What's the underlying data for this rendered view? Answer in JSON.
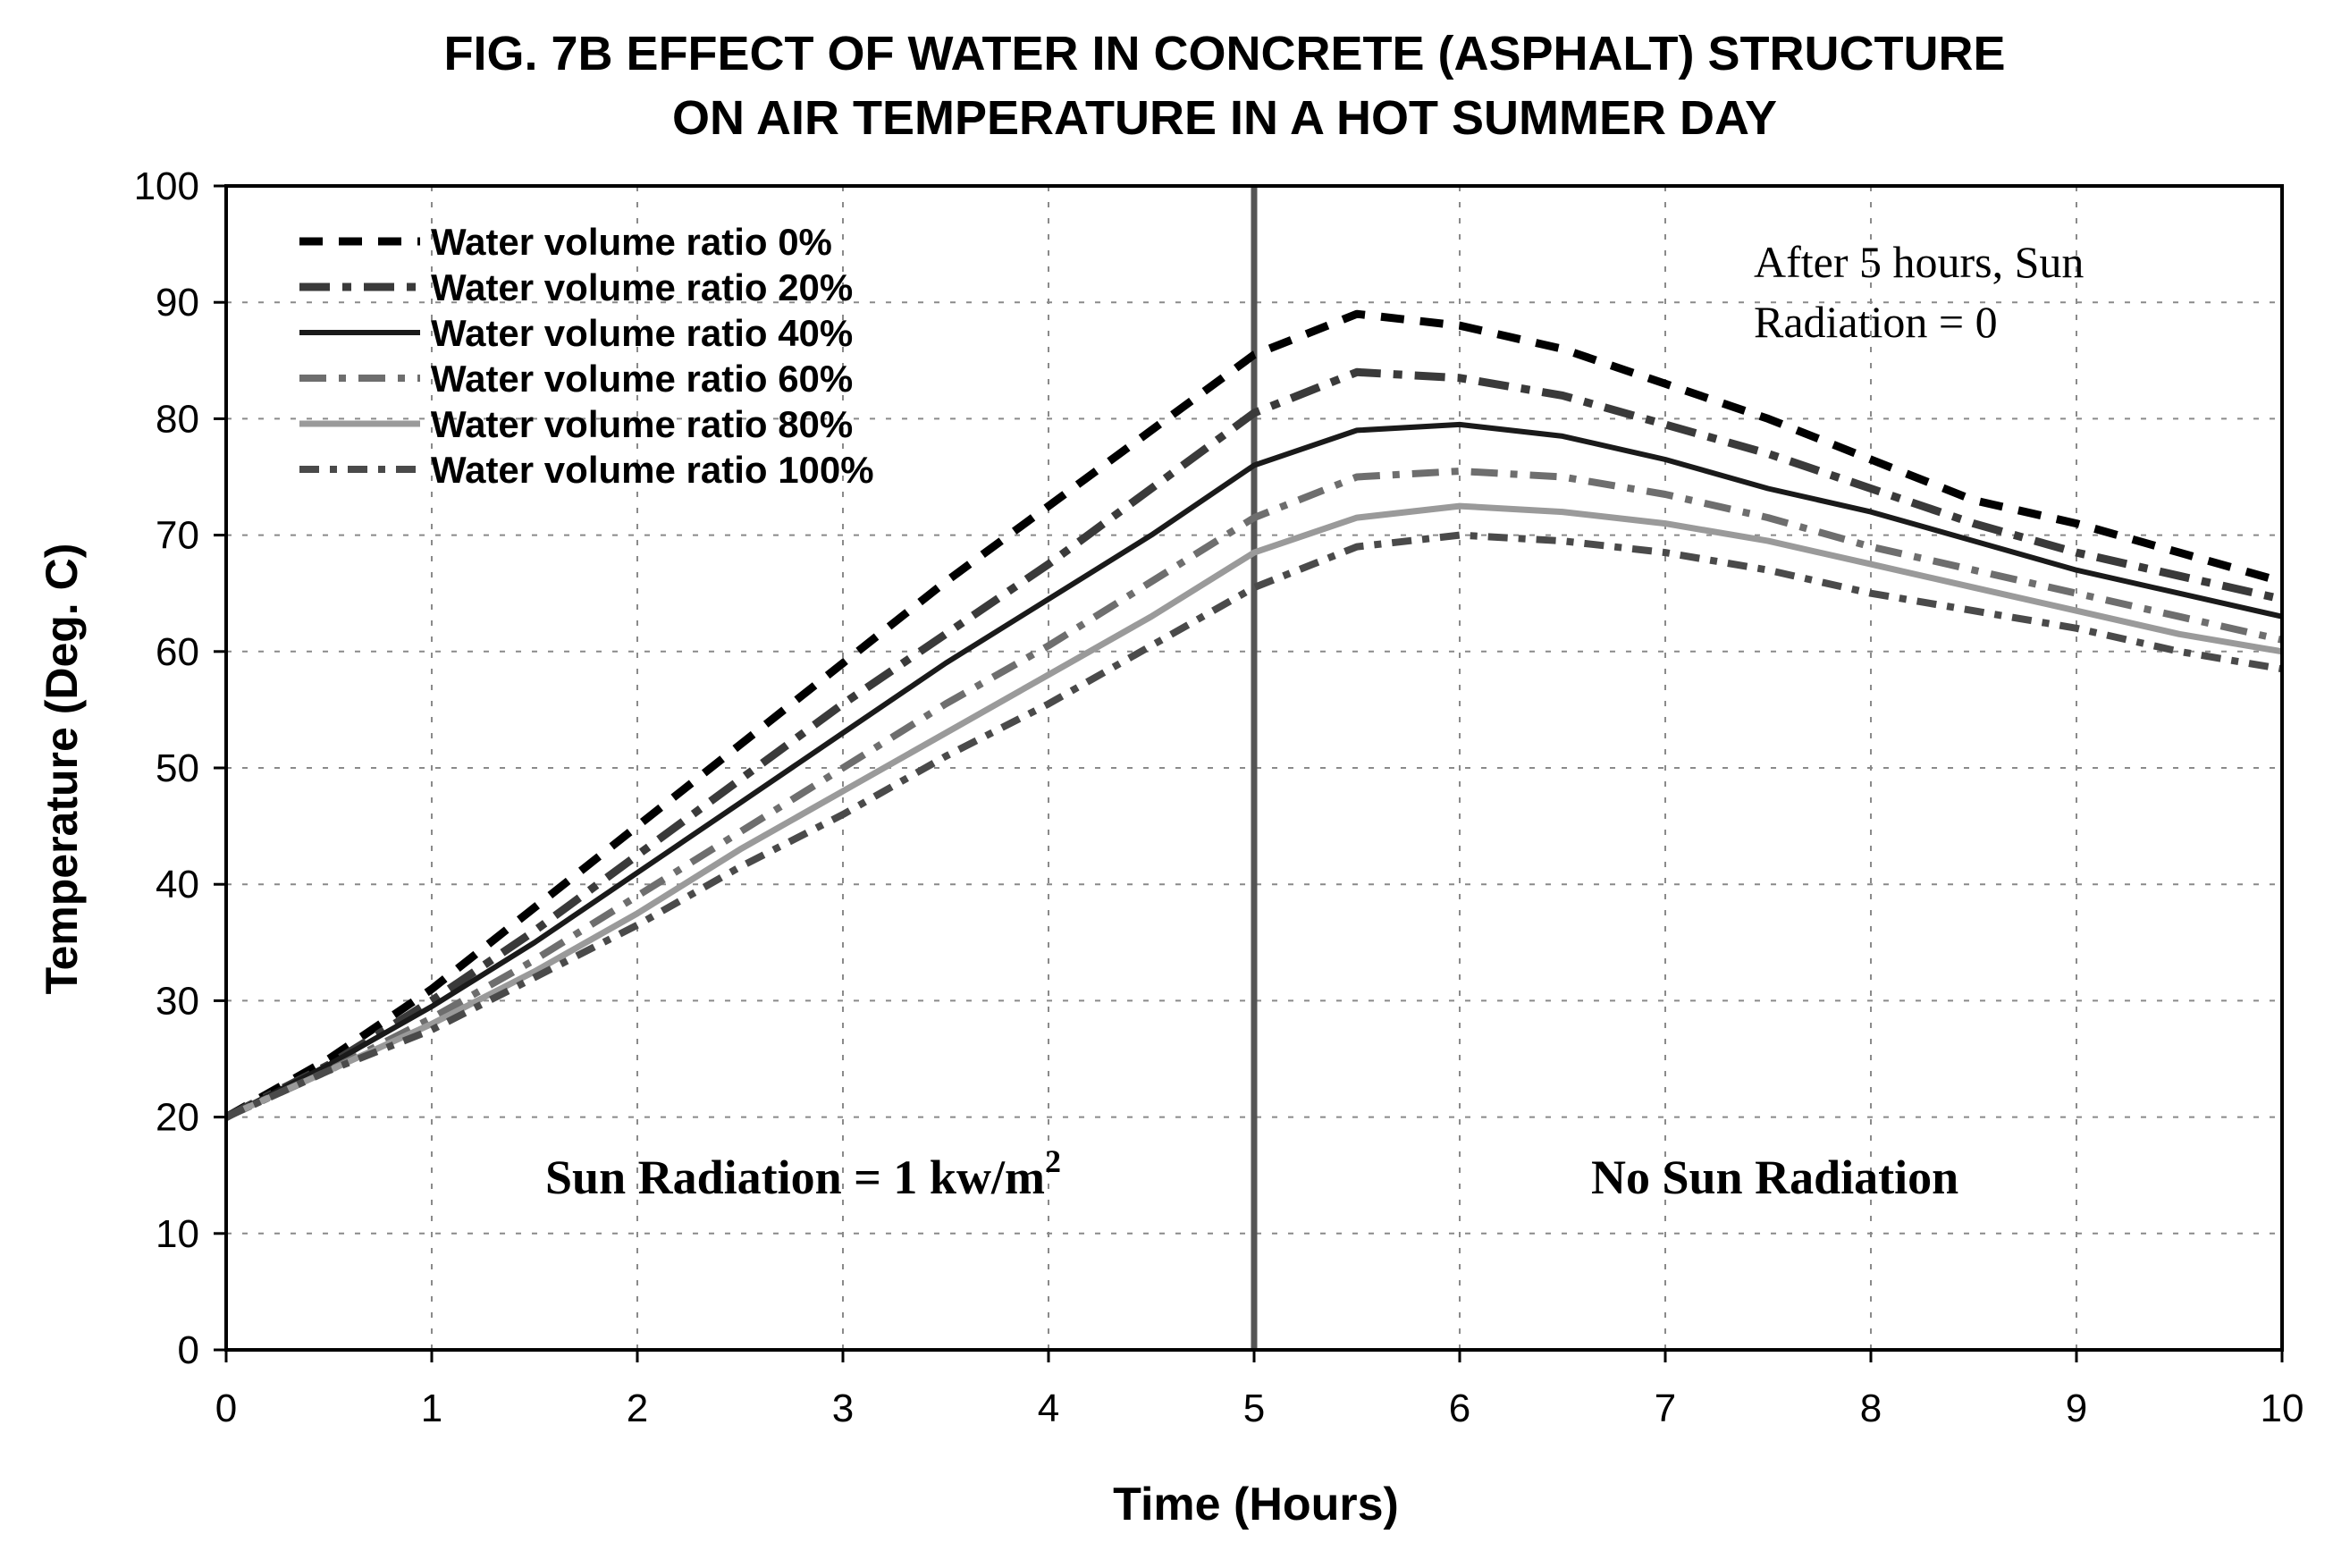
{
  "chart_data": {
    "type": "line",
    "title_lines": [
      "FIG. 7B EFFECT OF WATER IN CONCRETE (ASPHALT) STRUCTURE",
      "ON AIR TEMPERATURE IN A HOT SUMMER DAY"
    ],
    "xlabel": "Time (Hours)",
    "ylabel": "Temperature (Deg. C)",
    "xlim": [
      0,
      10
    ],
    "ylim": [
      0,
      100
    ],
    "x_ticks": [
      "0",
      "1",
      "2",
      "3",
      "4",
      "5",
      "6",
      "7",
      "8",
      "9",
      "10"
    ],
    "y_ticks": [
      "0",
      "10",
      "20",
      "30",
      "40",
      "50",
      "60",
      "70",
      "80",
      "90",
      "100"
    ],
    "grid": true,
    "legend_position": "top-left",
    "vertical_marker_x": 5,
    "x": [
      0,
      0.5,
      1,
      1.5,
      2,
      2.5,
      3,
      3.5,
      4,
      4.5,
      5,
      5.5,
      6,
      6.5,
      7,
      7.5,
      8,
      8.5,
      9,
      9.5,
      10
    ],
    "series": [
      {
        "name": "Water volume ratio 0%",
        "color": "#000000",
        "values": [
          20,
          25,
          31,
          38,
          45,
          52,
          59,
          66,
          72.5,
          79,
          85.5,
          89,
          88,
          86,
          83,
          80,
          76.5,
          73,
          71,
          68.5,
          66
        ]
      },
      {
        "name": "Water volume ratio 20%",
        "color": "#3a3a3a",
        "values": [
          20,
          24.5,
          30,
          36,
          42.5,
          49,
          55.5,
          61.5,
          67.5,
          74,
          80.5,
          84,
          83.5,
          82,
          79.5,
          77,
          74,
          71,
          68.5,
          66.5,
          64.5
        ]
      },
      {
        "name": "Water volume ratio 40%",
        "color": "#1a1a1a",
        "values": [
          20,
          24.5,
          29.5,
          35,
          41,
          47,
          53,
          59,
          64.5,
          70,
          76,
          79,
          79.5,
          78.5,
          76.5,
          74,
          72,
          69.5,
          67,
          65,
          63
        ]
      },
      {
        "name": "Water volume ratio 60%",
        "color": "#6e6e6e",
        "values": [
          20,
          24,
          28.5,
          33.5,
          39,
          44.5,
          50,
          55.5,
          60.5,
          66,
          71.5,
          75,
          75.5,
          75,
          73.5,
          71.5,
          69,
          67,
          65,
          63,
          61
        ]
      },
      {
        "name": "Water volume ratio 80%",
        "color": "#9a9a9a",
        "values": [
          20,
          24,
          28,
          32.5,
          37.5,
          43,
          48,
          53,
          58,
          63,
          68.5,
          71.5,
          72.5,
          72,
          71,
          69.5,
          67.5,
          65.5,
          63.5,
          61.5,
          60
        ]
      },
      {
        "name": "Water volume ratio 100%",
        "color": "#4a4a4a",
        "values": [
          20,
          24,
          27.5,
          32,
          36.5,
          41.5,
          46,
          51,
          55.5,
          60.5,
          65.5,
          69,
          70,
          69.5,
          68.5,
          67,
          65,
          63.5,
          62,
          60,
          58.5
        ]
      }
    ],
    "annotations": {
      "top_right_line1": "After 5 hours, Sun",
      "top_right_line2": "Radiation = 0",
      "left_label": "Sun Radiation = 1 kw/m",
      "left_label_superscript": "2",
      "right_label": "No Sun Radiation"
    }
  }
}
